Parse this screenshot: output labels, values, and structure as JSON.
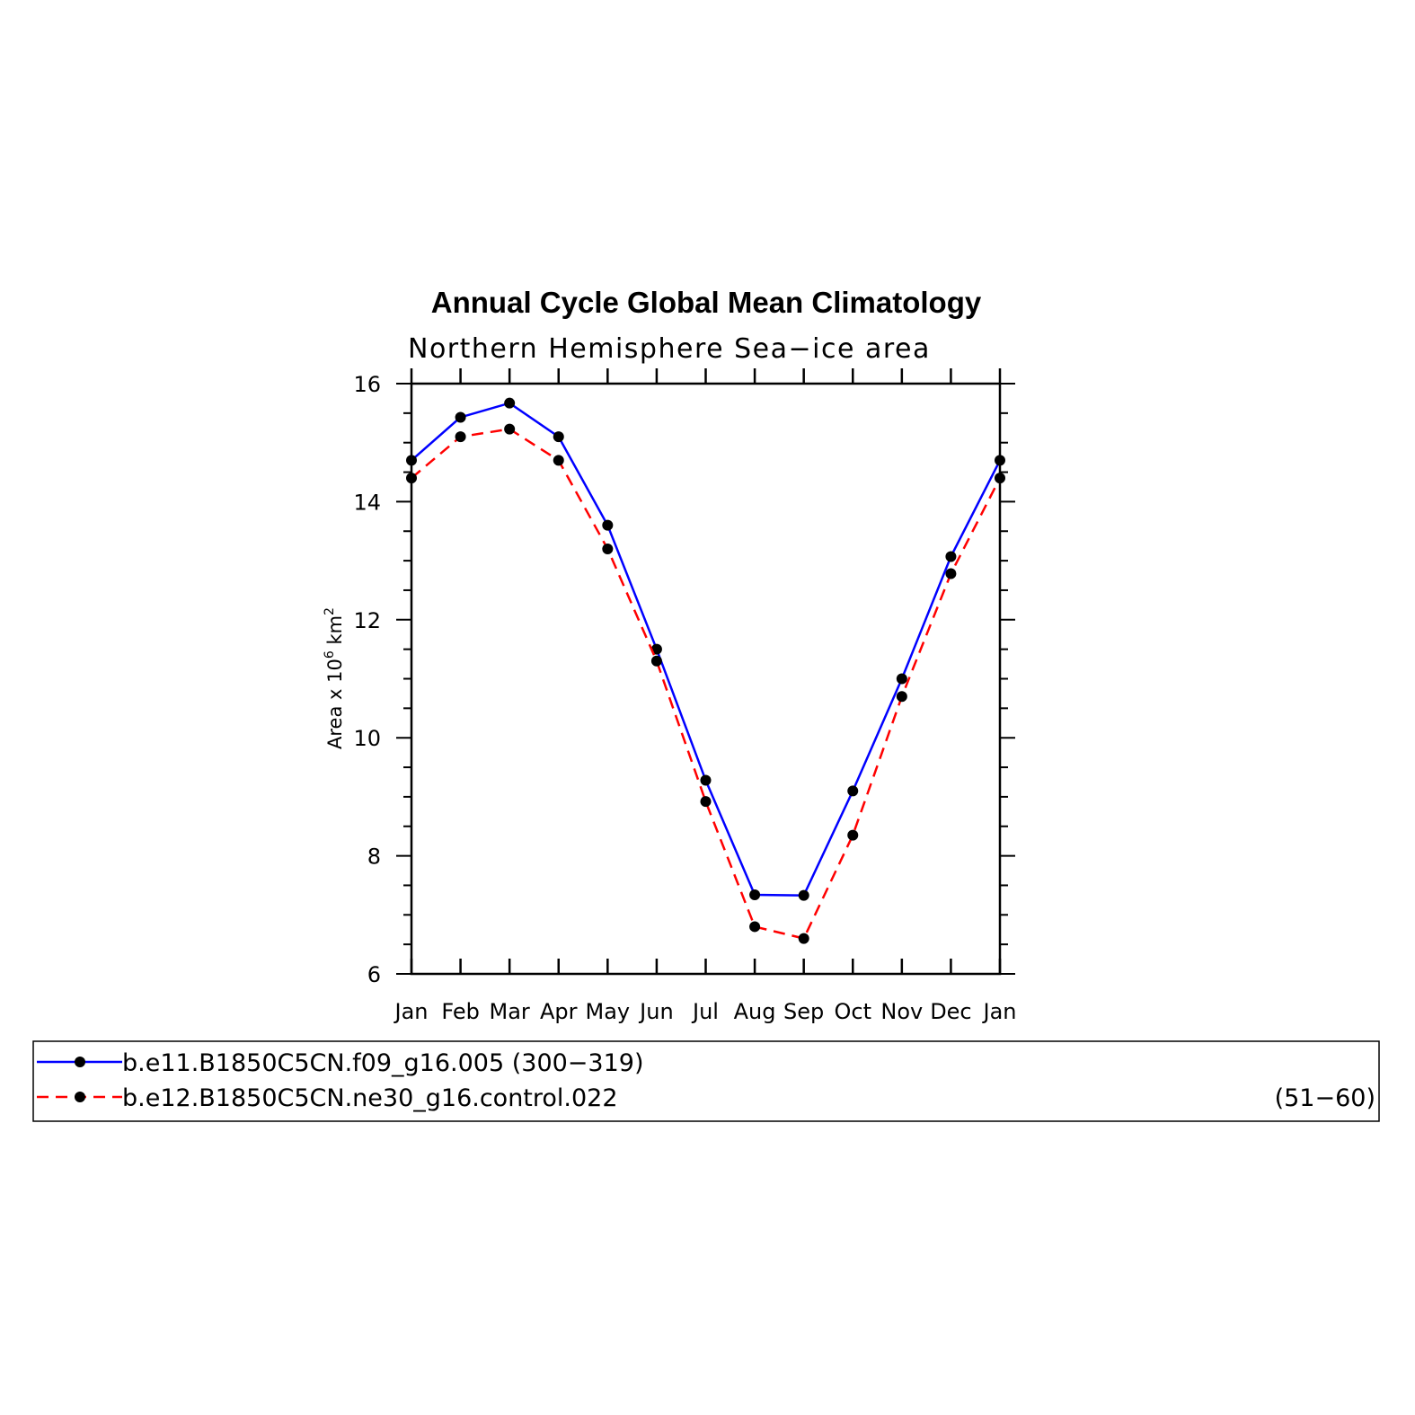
{
  "chart_data": {
    "type": "line",
    "title": "Annual Cycle Global Mean Climatology",
    "subtitle": "Northern Hemisphere Sea−ice area",
    "ylabel": {
      "base": "Area x 10",
      "exp1": "6",
      "unit": " km",
      "exp2": "2"
    },
    "xlabel": "",
    "categories": [
      "Jan",
      "Feb",
      "Mar",
      "Apr",
      "May",
      "Jun",
      "Jul",
      "Aug",
      "Sep",
      "Oct",
      "Nov",
      "Dec",
      "Jan"
    ],
    "ylim": [
      6,
      16
    ],
    "yticks": [
      6,
      8,
      10,
      12,
      14,
      16
    ],
    "yminor_step": 0.5,
    "series": [
      {
        "name": "b.e11.B1850C5CN.f09_g16.005",
        "years": "(300−319)",
        "color": "#0000ff",
        "dash": "solid",
        "values": [
          14.7,
          15.43,
          15.67,
          15.1,
          13.6,
          11.5,
          9.28,
          7.34,
          7.33,
          9.1,
          11.0,
          13.07,
          14.7
        ]
      },
      {
        "name": "b.e12.B1850C5CN.ne30_g16.control.022",
        "years": "(51−60)",
        "color": "#ff0000",
        "dash": "dashed",
        "values": [
          14.4,
          15.1,
          15.23,
          14.7,
          13.2,
          11.3,
          8.92,
          6.8,
          6.6,
          8.35,
          10.7,
          12.78,
          14.4
        ]
      }
    ],
    "marker_color": "#000000",
    "grid": false,
    "legend_position": "bottom"
  }
}
